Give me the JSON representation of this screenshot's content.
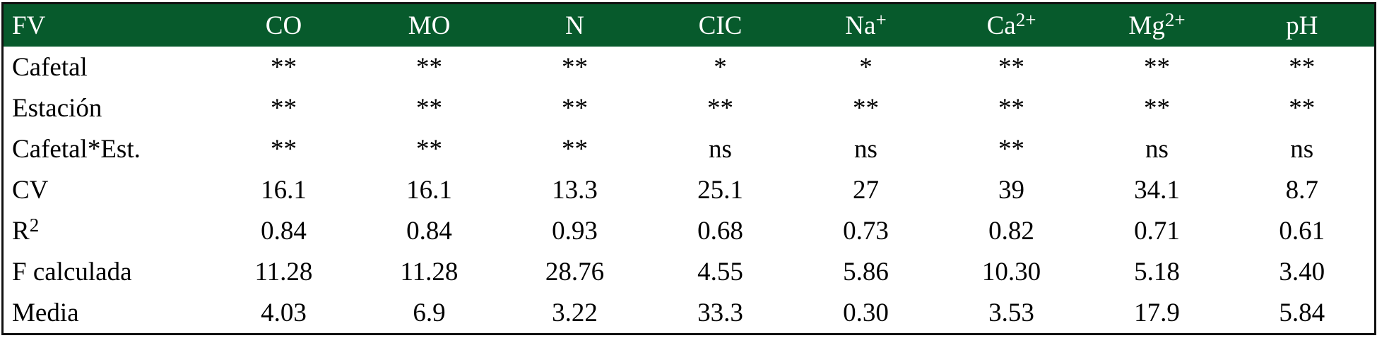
{
  "table": {
    "header": [
      {
        "text": "FV"
      },
      {
        "text": "CO"
      },
      {
        "text": "MO"
      },
      {
        "text": "N"
      },
      {
        "text": "CIC"
      },
      {
        "text": "Na",
        "sup": "+"
      },
      {
        "text": "Ca",
        "sup": "2+"
      },
      {
        "text": "Mg",
        "sup": "2+"
      },
      {
        "text": "pH"
      }
    ],
    "rows": [
      {
        "label": "Cafetal",
        "values": [
          "**",
          "**",
          "**",
          "*",
          "*",
          "**",
          "**",
          "**"
        ]
      },
      {
        "label": "Estación",
        "values": [
          "**",
          "**",
          "**",
          "**",
          "**",
          "**",
          "**",
          "**"
        ]
      },
      {
        "label": "Cafetal*Est.",
        "values": [
          "**",
          "**",
          "**",
          "ns",
          "ns",
          "**",
          "ns",
          "ns"
        ]
      },
      {
        "label": "CV",
        "values": [
          "16.1",
          "16.1",
          "13.3",
          "25.1",
          "27",
          "39",
          "34.1",
          "8.7"
        ]
      },
      {
        "label": "R",
        "label_sup": "2",
        "values": [
          "0.84",
          "0.84",
          "0.93",
          "0.68",
          "0.73",
          "0.82",
          "0.71",
          "0.61"
        ]
      },
      {
        "label": "F calculada",
        "values": [
          "11.28",
          "11.28",
          "28.76",
          "4.55",
          "5.86",
          "10.30",
          "5.18",
          "3.40"
        ]
      },
      {
        "label": "Media",
        "values": [
          "4.03",
          "6.9",
          "3.22",
          "33.3",
          "0.30",
          "3.53",
          "17.9",
          "5.84"
        ]
      }
    ]
  }
}
